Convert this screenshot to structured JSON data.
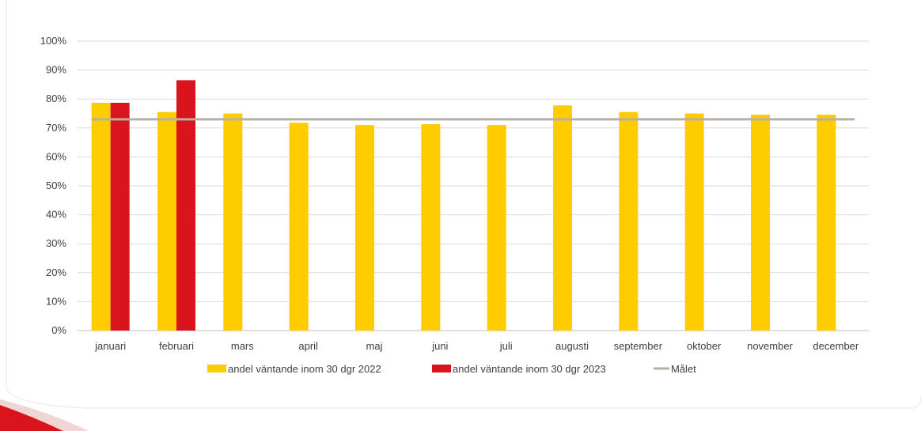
{
  "chart_data": {
    "type": "bar",
    "categories": [
      "januari",
      "februari",
      "mars",
      "april",
      "maj",
      "juni",
      "juli",
      "augusti",
      "september",
      "oktober",
      "november",
      "december"
    ],
    "series": [
      {
        "name": "andel väntande inom 30 dgr 2022",
        "kind": "bar",
        "color": "#FFCC00",
        "values": [
          78.7,
          75.5,
          75.0,
          71.8,
          71.0,
          71.3,
          71.0,
          77.8,
          75.5,
          75.0,
          74.6,
          74.6
        ]
      },
      {
        "name": "andel väntande inom 30 dgr 2023",
        "kind": "bar",
        "color": "#D9141C",
        "values": [
          78.7,
          86.5,
          null,
          null,
          null,
          null,
          null,
          null,
          null,
          null,
          null,
          null
        ]
      },
      {
        "name": "Målet",
        "kind": "line",
        "color": "#B8AFA6",
        "values": [
          73,
          73,
          73,
          73,
          73,
          73,
          73,
          73,
          73,
          73,
          73,
          73
        ]
      }
    ],
    "y_ticks": [
      "0%",
      "10%",
      "20%",
      "30%",
      "40%",
      "50%",
      "60%",
      "70%",
      "80%",
      "90%",
      "100%"
    ],
    "ylim": [
      0,
      100
    ],
    "grid": true,
    "legend_position": "bottom",
    "title": "",
    "xlabel": "",
    "ylabel": ""
  }
}
